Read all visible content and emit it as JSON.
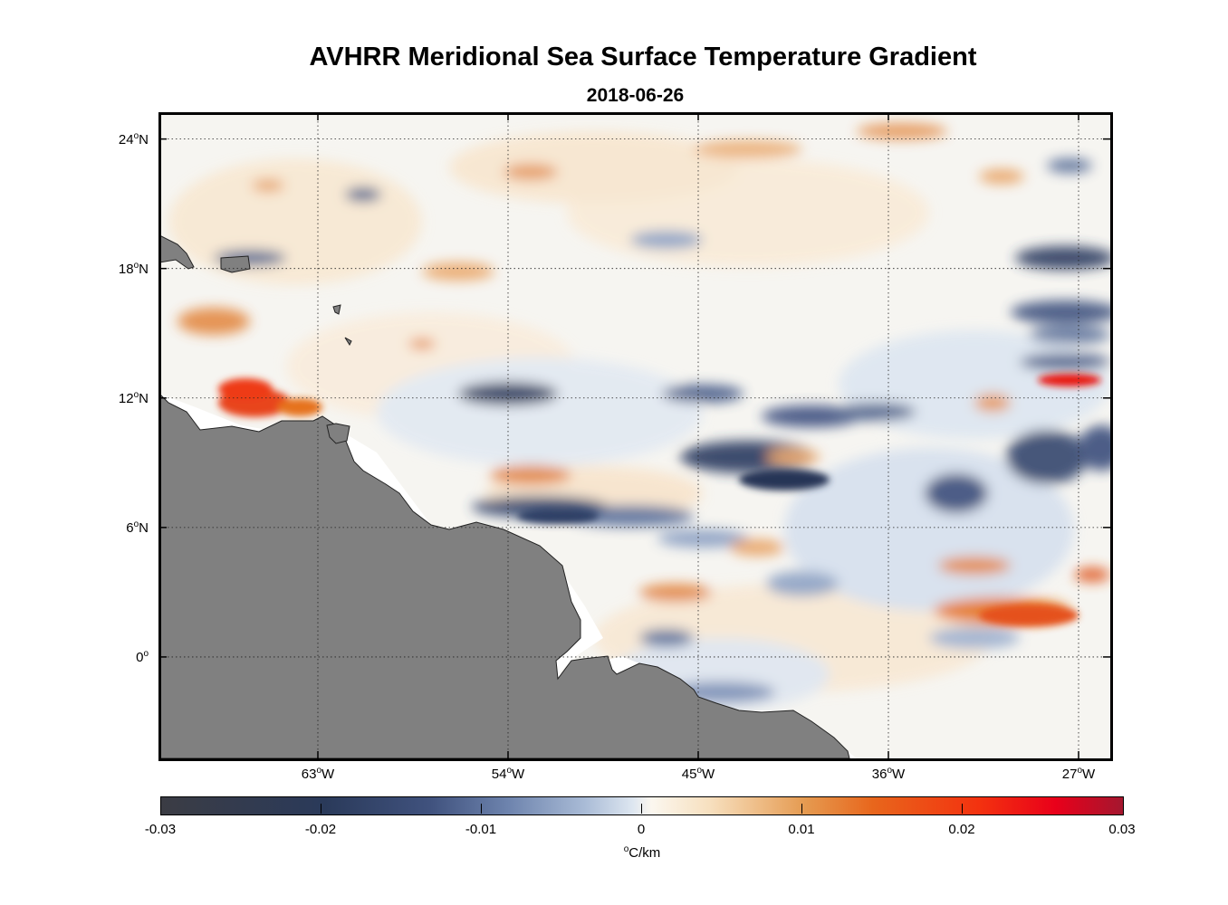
{
  "title": "AVHRR Meridional Sea Surface Temperature Gradient",
  "date": "2018-06-26",
  "lat_labels": [
    {
      "value": 24,
      "deg": "24",
      "dir": "N"
    },
    {
      "value": 18,
      "deg": "18",
      "dir": "N"
    },
    {
      "value": 12,
      "deg": "12",
      "dir": "N"
    },
    {
      "value": 6,
      "deg": "6",
      "dir": "N"
    },
    {
      "value": 0,
      "deg": "0",
      "dir": ""
    }
  ],
  "lon_labels": [
    {
      "value": -63,
      "deg": "63",
      "dir": "W"
    },
    {
      "value": -54,
      "deg": "54",
      "dir": "W"
    },
    {
      "value": -45,
      "deg": "45",
      "dir": "W"
    },
    {
      "value": -36,
      "deg": "36",
      "dir": "W"
    },
    {
      "value": -27,
      "deg": "27",
      "dir": "W"
    }
  ],
  "colorbar": {
    "ticks": [
      "-0.03",
      "-0.02",
      "-0.01",
      "0",
      "0.01",
      "0.02",
      "0.03"
    ],
    "unit_symbol": "o",
    "unit_text": "C/km"
  },
  "colors": {
    "land": "#808080",
    "coast_buffer": "#ffffff",
    "strong_negative": "#2a3a5a",
    "negative": "#6d83ad",
    "positive": "#e59a50",
    "strong_positive": "#e8261c"
  }
}
